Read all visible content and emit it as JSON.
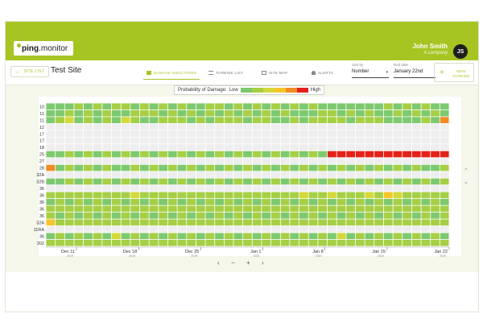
{
  "header": {
    "logo_bold": "ping",
    "logo_light": ".monitor",
    "user_name": "John Smith",
    "company": "A company",
    "initials": "JS",
    "accent": "#a6c523"
  },
  "toolbar": {
    "back_label": "SITE LIST",
    "site_title": "Test Site",
    "tabs": [
      {
        "label": "DAMAGE INDICATORS",
        "icon": "damage-indicators-icon",
        "active": true
      },
      {
        "label": "TURBINE LIST",
        "icon": "list-icon",
        "active": false
      },
      {
        "label": "SITE MAP",
        "icon": "map-icon",
        "active": false
      },
      {
        "label": "ALERTS",
        "icon": "bell-icon",
        "active": false
      }
    ],
    "sort_label": "Sort by",
    "sort_value": "Number",
    "end_date_label": "End date",
    "end_date_value": "January 22nd",
    "new_turbine_line1": "NEW",
    "new_turbine_line2": "TURBINE"
  },
  "legend": {
    "title": "Probability of Damage:",
    "low": "Low",
    "high": "High",
    "colors": [
      "#7dc96f",
      "#a6cf45",
      "#d3d93a",
      "#f6c52a",
      "#f08c23",
      "#e42119"
    ]
  },
  "colors": {
    "empty": "#eeeeee",
    "levels": [
      "#7dc96f",
      "#a6cf45",
      "#d3d93a",
      "#f6c52a",
      "#f08c23",
      "#e42119"
    ]
  },
  "chart_data": {
    "type": "heatmap",
    "title": "",
    "row_labels": [
      "10",
      "11",
      "11",
      "12",
      "17",
      "17",
      "18",
      "25",
      "27",
      "28",
      "32A",
      "32B",
      "36",
      "36",
      "36",
      "36",
      "36",
      "32A",
      "11RA",
      "36",
      "202"
    ],
    "x_ticks": [
      {
        "label": "Dec 11",
        "sub": "2019"
      },
      {
        "label": "Dec 18",
        "sub": "2019"
      },
      {
        "label": "Dec 25",
        "sub": "2019"
      },
      {
        "label": "Jan 1",
        "sub": "2020"
      },
      {
        "label": "Jan 8",
        "sub": "2020"
      },
      {
        "label": "Jan 15",
        "sub": "2020"
      },
      {
        "label": "Jan 22",
        "sub": "2020"
      }
    ],
    "num_columns": 43,
    "scale": "0=empty, 1=low .. 6=high",
    "rows": [
      "1112121221212121122121212121211111112121211",
      "1121212112221212121212121211122121211212121",
      "1231212132112221212221221121222212221111215",
      "0000000000000000000000000000000000000000000",
      "0000000000000000000000000000000000000000000",
      "0000000000000000000000000000000000000000000",
      "0000000000000000000000000000000000000000000",
      "1121212121212121212121212121216666666666666",
      "0000000000000000000000000000000000000000000",
      "5121212112121212121212121212121212121212112",
      "0000000000000000000000000000000000000000000",
      "1121212121212121212121212121212121212121212",
      "0000000000000000000000000000000000000000000",
      "2222222223222222222222222223223222324322222",
      "1212121212121212121212121212121212121212121",
      "2222222222222222222222222222222222222222222",
      "2121212121212121212121212121212121212121212",
      "4222222222222222222222222222222222222222222",
      "0000000000000000000000000000000000000000000",
      "1212121312121212121212121212121312121212121",
      "2222222222222222222222222222222222222222222"
    ]
  },
  "controls": {
    "prev": "‹",
    "zoom_out": "−",
    "zoom_in": "+",
    "next": "›"
  }
}
